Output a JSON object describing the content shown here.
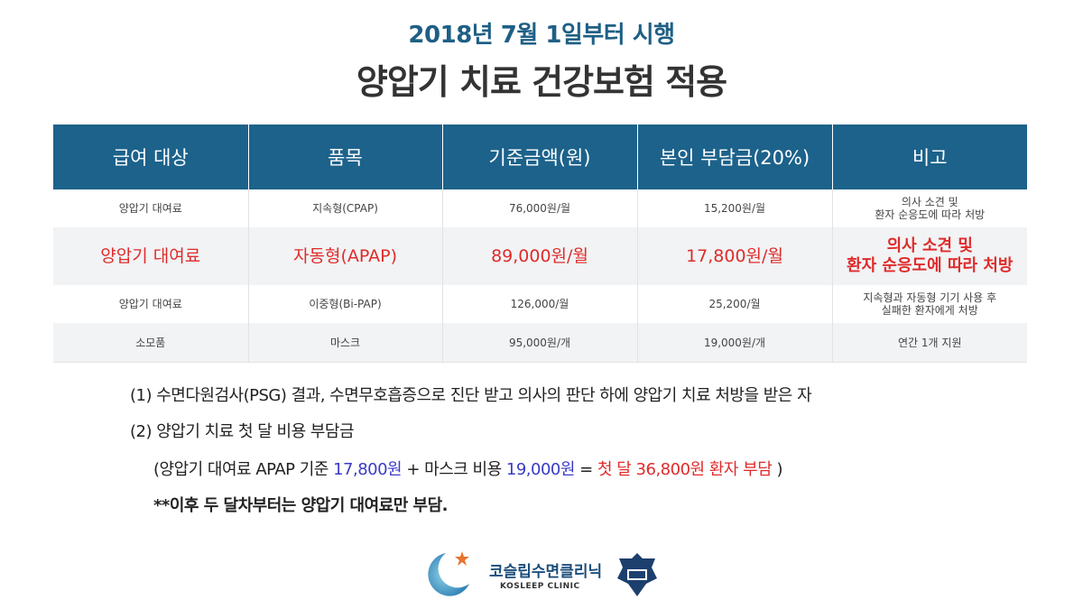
{
  "header": {
    "subtitle": "2018년 7월 1일부터 시행",
    "title": "양압기 치료 건강보험 적용"
  },
  "table": {
    "columns": [
      "급여 대상",
      "품목",
      "기준금액(원)",
      "본인 부담금(20%)",
      "비고"
    ],
    "rows": [
      [
        "양압기 대여료",
        "지속형(CPAP)",
        "76,000원/월",
        "15,200원/월",
        "의사 소견 및\n환자 순응도에 따라 처방"
      ],
      [
        "양압기 대여료",
        "자동형(APAP)",
        "89,000원/월",
        "17,800원/월",
        "의사 소견 및\n환자 순응도에 따라 처방"
      ],
      [
        "양압기 대여료",
        "이중형(Bi-PAP)",
        "126,000/월",
        "25,200/월",
        "지속형과 자동형 기기 사용 후\n실패한 환자에게 처방"
      ],
      [
        "소모품",
        "마스크",
        "95,000원/개",
        "19,000원/개",
        "연간 1개 지원"
      ]
    ],
    "highlight_color": "#e02b2b",
    "header_color": "#1c628b"
  },
  "notes": {
    "line1": "(1) 수면다원검사(PSG) 결과, 수면무호흡증으로 진단 받고 의사의 판단 하에 양압기 치료 처방을 받은 자",
    "line2": "(2) 양압기 치료 첫 달 비용 부담금",
    "line3_a": "(양압기 대여료 APAP 기준 ",
    "line3_b": "17,800원",
    "line3_c": " + 마스크 비용 ",
    "line3_d": "19,000원",
    "line3_e": " = ",
    "line3_f": "첫 달 36,800원 환자 부담",
    "line3_g": " )",
    "line4": "**이후 두 달차부터는 양압기 대여료만 부담."
  },
  "logo": {
    "name": "코슬립수면클리닉",
    "sub": "KOSLEEP CLINIC"
  }
}
